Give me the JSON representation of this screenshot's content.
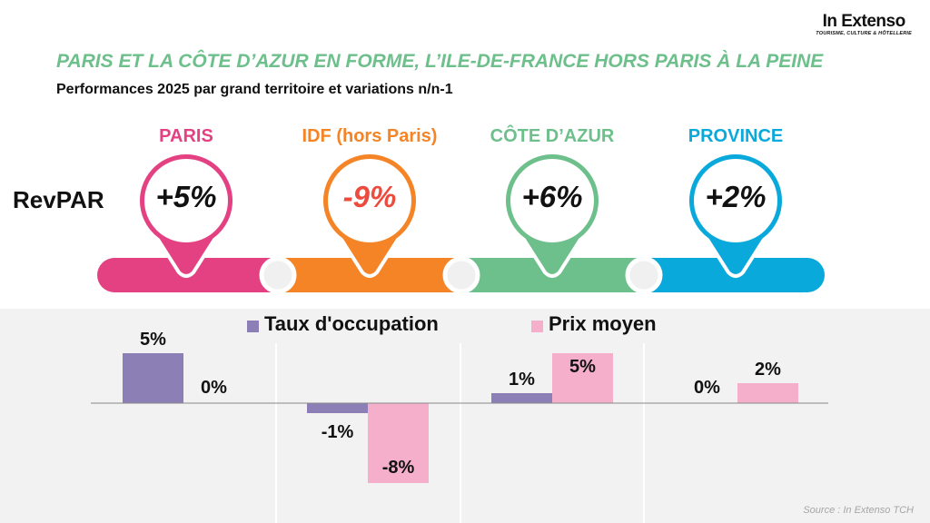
{
  "logo": {
    "name": "In Extenso",
    "tagline": "TOURISME, CULTURE & HÔTELLERIE"
  },
  "title": "PARIS ET LA CÔTE D’AZUR EN FORME, L’ILE-DE-FRANCE HORS PARIS À LA PEINE",
  "subtitle": "Performances 2025 par grand territoire et variations n/n-1",
  "revpar_label": "RevPAR",
  "regions": [
    {
      "name": "PARIS",
      "revpar": "+5%",
      "color": "#e44183",
      "value_color": "#111111"
    },
    {
      "name": "IDF (hors Paris)",
      "revpar": "-9%",
      "color": "#f48426",
      "value_color": "#ee4b3f"
    },
    {
      "name": "CÔTE D’AZUR",
      "revpar": "+6%",
      "color": "#6dbf8b",
      "value_color": "#111111"
    },
    {
      "name": "PROVINCE",
      "revpar": "+2%",
      "color": "#0aa9dc",
      "value_color": "#111111"
    }
  ],
  "chart_data": {
    "type": "bar",
    "categories": [
      "PARIS",
      "IDF (hors Paris)",
      "CÔTE D’AZUR",
      "PROVINCE"
    ],
    "series": [
      {
        "name": "Taux d'occupation",
        "color": "#8b7fb5",
        "values": [
          5,
          -1,
          1,
          0
        ],
        "labels": [
          "5%",
          "-1%",
          "1%",
          "0%"
        ]
      },
      {
        "name": "Prix moyen",
        "color": "#f5afcb",
        "values": [
          0,
          -8,
          5,
          2
        ],
        "labels": [
          "0%",
          "-8%",
          "5%",
          "2%"
        ]
      }
    ],
    "legend": "top",
    "grid": false
  },
  "source": "Source : In Extenso TCH"
}
